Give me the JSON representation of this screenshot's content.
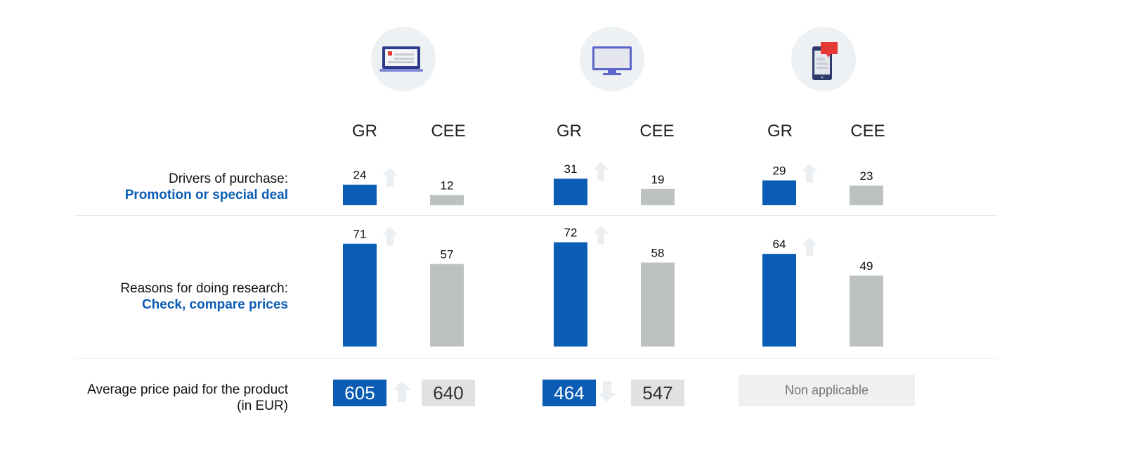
{
  "colors": {
    "gr": "#0b5cb5",
    "cee": "#bcc2c1",
    "arrow": "#eceff2",
    "label_accent": "#0b5cb5"
  },
  "devices": [
    {
      "icon": "laptop-icon"
    },
    {
      "icon": "desktop-monitor-icon"
    },
    {
      "icon": "smartphone-icon"
    }
  ],
  "headers": [
    "GR",
    "CEE",
    "GR",
    "CEE",
    "GR",
    "CEE"
  ],
  "rows": {
    "drivers": {
      "label": "Drivers of purchase:",
      "sublabel": "Promotion or special deal"
    },
    "research": {
      "label": "Reasons for doing research:",
      "sublabel": "Check, compare prices"
    },
    "price": {
      "label_line1": "Average price paid for the product",
      "label_line2": "(in EUR)"
    }
  },
  "chart_data": [
    {
      "type": "bar",
      "title": "Drivers of purchase: Promotion or special deal",
      "categories": [
        "GR",
        "CEE",
        "GR",
        "CEE",
        "GR",
        "CEE"
      ],
      "values": [
        24,
        12,
        31,
        19,
        29,
        23
      ],
      "trend": [
        "up",
        null,
        "up",
        null,
        "up",
        null
      ],
      "ylim": [
        0,
        100
      ]
    },
    {
      "type": "bar",
      "title": "Reasons for doing research: Check, compare prices",
      "categories": [
        "GR",
        "CEE",
        "GR",
        "CEE",
        "GR",
        "CEE"
      ],
      "values": [
        71,
        57,
        72,
        58,
        64,
        49
      ],
      "trend": [
        "up",
        null,
        "up",
        null,
        "up",
        null
      ],
      "ylim": [
        0,
        100
      ]
    }
  ],
  "prices": {
    "values": [
      "605",
      "640",
      "464",
      "547"
    ],
    "trend": [
      "up",
      null,
      "down",
      null
    ],
    "not_applicable": "Non applicable"
  }
}
